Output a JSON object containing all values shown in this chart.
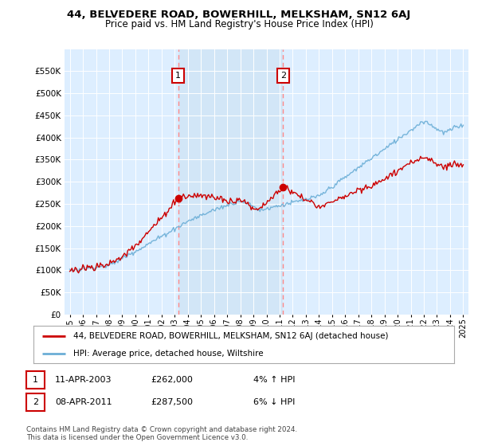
{
  "title": "44, BELVEDERE ROAD, BOWERHILL, MELKSHAM, SN12 6AJ",
  "subtitle": "Price paid vs. HM Land Registry's House Price Index (HPI)",
  "legend_line1": "44, BELVEDERE ROAD, BOWERHILL, MELKSHAM, SN12 6AJ (detached house)",
  "legend_line2": "HPI: Average price, detached house, Wiltshire",
  "annotation1_date": "11-APR-2003",
  "annotation1_price": "£262,000",
  "annotation1_hpi": "4% ↑ HPI",
  "annotation2_date": "08-APR-2011",
  "annotation2_price": "£287,500",
  "annotation2_hpi": "6% ↓ HPI",
  "footnote": "Contains HM Land Registry data © Crown copyright and database right 2024.\nThis data is licensed under the Open Government Licence v3.0.",
  "hpi_color": "#6baed6",
  "price_color": "#cc0000",
  "vline_color": "#ff8888",
  "shade_color": "#ddeeff",
  "background_color": "#ddeeff",
  "ylim": [
    0,
    600000
  ],
  "yticks": [
    0,
    50000,
    100000,
    150000,
    200000,
    250000,
    300000,
    350000,
    400000,
    450000,
    500000,
    550000
  ],
  "sale1_year": 2003.27,
  "sale1_price": 262000,
  "sale2_year": 2011.27,
  "sale2_price": 287500
}
